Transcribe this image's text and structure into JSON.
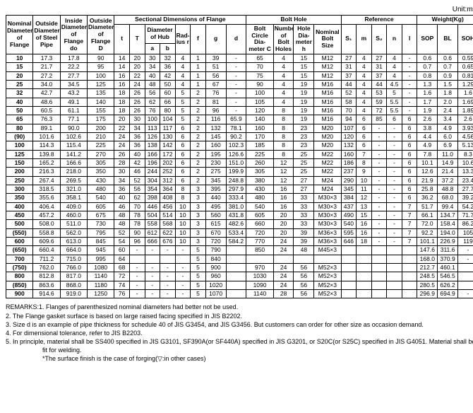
{
  "unit_label": "Unit:mm",
  "columns": {
    "top": [
      "Nominal Diameter of Flange",
      "Outside Diameter of Steel Pipe",
      "Inside Diameter of Flange do",
      "Outside Diameter of Flange D",
      "Sectional Dimensions of Flange",
      "Bolt Hole",
      "Reference",
      "Weight(Kg)"
    ],
    "sectional": [
      "t",
      "T",
      "Diameter of Hub",
      "Rad-ius r",
      "f",
      "g",
      "d"
    ],
    "hub": [
      "a",
      "b"
    ],
    "bolt": [
      "Bolt Circle Dia-meter C",
      "Number of Bolt Holes",
      "Hole Dia-meter h",
      "Nominal Bolt Size"
    ],
    "ref": [
      "S₁",
      "m",
      "S₂",
      "n",
      "l"
    ],
    "weight": [
      "SOP",
      "BL",
      "SOH"
    ]
  },
  "rows": [
    [
      "10",
      "17.3",
      "17.8",
      "90",
      "14",
      "20",
      "30",
      "32",
      "4",
      "1",
      "39",
      "-",
      "65",
      "4",
      "15",
      "M12",
      "27",
      "4",
      "27",
      "4",
      "-",
      "0.6",
      "0.6",
      "0.59"
    ],
    [
      "15",
      "21.7",
      "22.2",
      "95",
      "14",
      "20",
      "34",
      "36",
      "4",
      "1",
      "51",
      "-",
      "70",
      "4",
      "15",
      "M12",
      "31",
      "4",
      "31",
      "4",
      "-",
      "0.7",
      "0.7",
      "0.65"
    ],
    [
      "20",
      "27.2",
      "27.7",
      "100",
      "16",
      "22",
      "40",
      "42",
      "4",
      "1",
      "56",
      "-",
      "75",
      "4",
      "15",
      "M12",
      "37",
      "4",
      "37",
      "4",
      "-",
      "0.8",
      "0.9",
      "0.81"
    ],
    [
      "25",
      "34.0",
      "34.5",
      "125",
      "16",
      "24",
      "48",
      "50",
      "4",
      "1",
      "67",
      "-",
      "90",
      "4",
      "19",
      "M16",
      "44",
      "4",
      "44",
      "4.5",
      "-",
      "1.3",
      "1.5",
      "1.29"
    ],
    [
      "32",
      "42.7",
      "43.2",
      "135",
      "18",
      "26",
      "56",
      "60",
      "5",
      "2",
      "76",
      "-",
      "100",
      "4",
      "19",
      "M16",
      "52",
      "4",
      "53",
      "5",
      "-",
      "1.6",
      "1.8",
      "1.6"
    ],
    [
      "40",
      "48.6",
      "49.1",
      "140",
      "18",
      "26",
      "62",
      "66",
      "5",
      "2",
      "81",
      "-",
      "105",
      "4",
      "19",
      "M16",
      "58",
      "4",
      "59",
      "5.5",
      "-",
      "1.7",
      "2.0",
      "1.69"
    ],
    [
      "50",
      "60.5",
      "61.1",
      "155",
      "18",
      "26",
      "76",
      "80",
      "5",
      "2",
      "96",
      "-",
      "120",
      "8",
      "19",
      "M16",
      "70",
      "4",
      "72",
      "5.5",
      "-",
      "1.9",
      "2.4",
      "1.89"
    ],
    [
      "65",
      "76.3",
      "77.1",
      "175",
      "20",
      "30",
      "100",
      "104",
      "5",
      "2",
      "116",
      "65.9",
      "140",
      "8",
      "19",
      "M16",
      "94",
      "6",
      "85",
      "6",
      "6",
      "2.6",
      "3.4",
      "2.6"
    ],
    [
      "80",
      "89.1",
      "90.0",
      "200",
      "22",
      "34",
      "113",
      "117",
      "6",
      "2",
      "132",
      "78.1",
      "160",
      "8",
      "23",
      "M20",
      "107",
      "6",
      "-",
      "-",
      "6",
      "3.8",
      "4.9",
      "3.93"
    ],
    [
      "(90)",
      "101.6",
      "102.6",
      "210",
      "24",
      "36",
      "126",
      "130",
      "6",
      "2",
      "145",
      "90.2",
      "170",
      "8",
      "23",
      "M20",
      "120",
      "6",
      "-",
      "-",
      "6",
      "4.4",
      "6.0",
      "4.56"
    ],
    [
      "100",
      "114.3",
      "115.4",
      "225",
      "24",
      "36",
      "138",
      "142",
      "6",
      "2",
      "160",
      "102.3",
      "185",
      "8",
      "23",
      "M20",
      "132",
      "6",
      "-",
      "-",
      "6",
      "4.9",
      "6.9",
      "5.13"
    ],
    [
      "125",
      "139.8",
      "141.2",
      "270",
      "26",
      "40",
      "166",
      "172",
      "6",
      "2",
      "195",
      "126.6",
      "225",
      "8",
      "25",
      "M22",
      "160",
      "7",
      "-",
      "-",
      "6",
      "7.8",
      "11.0",
      "8.3"
    ],
    [
      "150",
      "165.2",
      "166.6",
      "305",
      "28",
      "42",
      "196",
      "202",
      "6",
      "2",
      "230",
      "151.0",
      "260",
      "12",
      "25",
      "M22",
      "186",
      "8",
      "-",
      "-",
      "6",
      "10.1",
      "14.9",
      "10.6"
    ],
    [
      "200",
      "216.3",
      "218.0",
      "350",
      "30",
      "46",
      "244",
      "252",
      "6",
      "2",
      "275",
      "199.9",
      "305",
      "12",
      "25",
      "M22",
      "237",
      "9",
      "-",
      "-",
      "6",
      "12.6",
      "21.4",
      "13.3"
    ],
    [
      "250",
      "267.4",
      "269.5",
      "430",
      "34",
      "52",
      "304",
      "312",
      "6",
      "2",
      "345",
      "248.8",
      "380",
      "12",
      "27",
      "M24",
      "290",
      "10",
      "-",
      "-",
      "6",
      "21.9",
      "37.2",
      "23.4"
    ],
    [
      "300",
      "318.5",
      "321.0",
      "480",
      "36",
      "56",
      "354",
      "364",
      "8",
      "3",
      "395",
      "297.9",
      "430",
      "16",
      "27",
      "M24",
      "345",
      "11",
      "-",
      "-",
      "6",
      "25.8",
      "48.8",
      "27.7"
    ],
    [
      "350",
      "355.6",
      "358.1",
      "540",
      "40",
      "62",
      "398",
      "408",
      "8",
      "3",
      "440",
      "333.4",
      "480",
      "16",
      "33",
      "M30×3",
      "384",
      "12",
      "-",
      "-",
      "6",
      "36.2",
      "68.0",
      "39.2"
    ],
    [
      "400",
      "406.4",
      "409.0",
      "605",
      "46",
      "70",
      "446",
      "456",
      "10",
      "3",
      "495",
      "381.0",
      "540",
      "16",
      "33",
      "M30×3",
      "437",
      "13",
      "-",
      "-",
      "7",
      "51.7",
      "99.4",
      "54.2"
    ],
    [
      "450",
      "457.2",
      "460.0",
      "675",
      "48",
      "78",
      "504",
      "514",
      "10",
      "3",
      "560",
      "431.8",
      "605",
      "20",
      "33",
      "M30×3",
      "490",
      "15",
      "-",
      "-",
      "7",
      "66.1",
      "134.7",
      "71.7"
    ],
    [
      "500",
      "508.0",
      "511.0",
      "730",
      "48",
      "78",
      "558",
      "568",
      "10",
      "3",
      "615",
      "482.6",
      "660",
      "20",
      "33",
      "M30×3",
      "540",
      "16",
      "-",
      "-",
      "7",
      "72.0",
      "158.4",
      "86.2"
    ],
    [
      "(550)",
      "558.8",
      "562.0",
      "795",
      "52",
      "90",
      "612",
      "622",
      "10",
      "3",
      "670",
      "533.4",
      "720",
      "20",
      "39",
      "M36×3",
      "595",
      "16",
      "-",
      "-",
      "7",
      "92.2",
      "194.0",
      "105"
    ],
    [
      "600",
      "609.6",
      "613.0",
      "845",
      "54",
      "96",
      "666",
      "676",
      "10",
      "3",
      "720",
      "584.2",
      "770",
      "24",
      "39",
      "M36×3",
      "646",
      "18",
      "-",
      "-",
      "7",
      "101.1",
      "226.9",
      "119"
    ],
    [
      "(650)",
      "660.4",
      "664.0",
      "945",
      "60",
      "-",
      "-",
      "-",
      "-",
      "5",
      "790",
      "",
      "850",
      "24",
      "48",
      "M45×3",
      "",
      "",
      "",
      "",
      "",
      "147.6",
      "311.6",
      "-"
    ],
    [
      "700",
      "711.2",
      "715.0",
      "995",
      "64",
      "",
      "",
      "",
      "",
      "5",
      "840",
      "",
      "",
      "",
      "",
      "",
      "",
      "",
      "",
      "",
      "",
      "168.0",
      "370.9",
      "-"
    ],
    [
      "(750)",
      "762.0",
      "766.0",
      "1080",
      "68",
      "-",
      "-",
      "-",
      "-",
      "5",
      "900",
      "",
      "970",
      "24",
      "56",
      "M52×3",
      "",
      "",
      "",
      "",
      "",
      "212.7",
      "460.1",
      ""
    ],
    [
      "800",
      "812.8",
      "817.0",
      "1140",
      "72",
      "-",
      "-",
      "-",
      "-",
      "5",
      "960",
      "",
      "1030",
      "24",
      "56",
      "M52×3",
      "",
      "",
      "",
      "",
      "",
      "248.5",
      "546.5",
      ""
    ],
    [
      "(850)",
      "863.6",
      "868.0",
      "1180",
      "74",
      "-",
      "-",
      "-",
      "-",
      "5",
      "1020",
      "",
      "1090",
      "24",
      "56",
      "M52×3",
      "",
      "",
      "",
      "",
      "",
      "280.5",
      "626.2",
      ""
    ],
    [
      "900",
      "914.6",
      "919.0",
      "1250",
      "76",
      "-",
      "-",
      "-",
      "-",
      "5",
      "1070",
      "",
      "1140",
      "28",
      "56",
      "M52×3",
      "",
      "",
      "",
      "",
      "",
      "296.9",
      "694.9",
      "-"
    ]
  ],
  "remarks_title": "REMARKS:",
  "remarks": [
    "1. Flanges of parenthesized nominal diameters had better not be used.",
    "2. The Flange gasket surface is based on large raised facing specified in JIS B2202.",
    "3. Size d is an example of pipe thickness for schedule 40 of JIS G3454, and JIS G3456. But customers can order for other size as occasion demand.",
    "4. For dimensional tolerance, refer to JIS B2203.",
    "5. In principle, material shall be SS400 specified in JIS G3101, SF390A(or SF440A) specified in JIS G3201, or S20C(or S25C) specified in JIS G4051. Material shall be fit for welding.",
    "*The surface finish is the case of forging(▽:in other cases)"
  ]
}
